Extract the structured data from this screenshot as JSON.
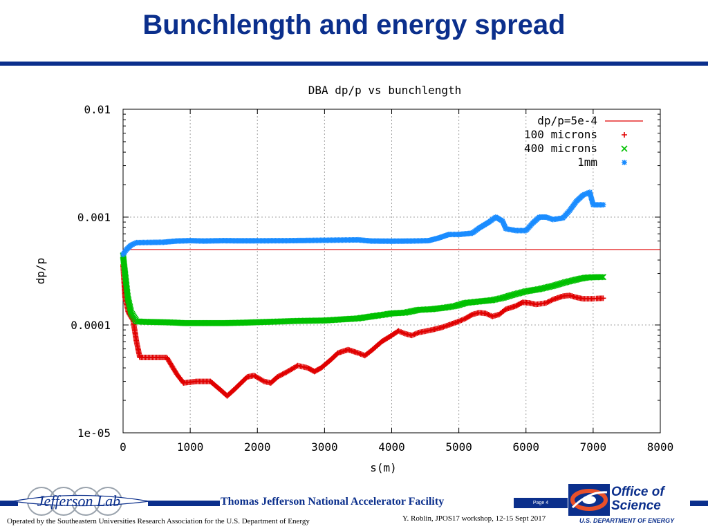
{
  "slide": {
    "title": "Bunchlength and energy spread"
  },
  "footer": {
    "lab_name": "Jefferson Lab",
    "facility": "Thomas Jefferson National Accelerator Facility",
    "page": "Page 4",
    "operated_by": "Operated by the Southeastern Universities Research Association for the U.S. Department of  Energy",
    "workshop": "Y. Roblin, JPOS17 workshop, 12-15 Sept 2017",
    "office_line1": "Office of",
    "office_line2": "Science",
    "doe": "U.S. DEPARTMENT OF ENERGY",
    "brand_color": "#0b2f8c"
  },
  "chart_data": {
    "type": "scatter",
    "title": "DBA dp/p vs bunchlength",
    "xlabel": "s(m)",
    "ylabel": "dp/p",
    "xlim": [
      0,
      8000
    ],
    "ylim": [
      1e-05,
      0.01
    ],
    "yscale": "log",
    "x_ticks": [
      0,
      1000,
      2000,
      3000,
      4000,
      5000,
      6000,
      7000,
      8000
    ],
    "x_tick_labels": [
      "0",
      "1000",
      "2000",
      "3000",
      "4000",
      "5000",
      "6000",
      "7000",
      "8000"
    ],
    "y_ticks": [
      0.01,
      0.001,
      0.0001,
      1e-05
    ],
    "y_tick_labels": [
      "0.01",
      "0.001",
      "0.0001",
      "1e-05"
    ],
    "grid": true,
    "legend_position": "top-right",
    "series": [
      {
        "name": "dp/p=5e-4",
        "style": "line",
        "color": "#e00000",
        "points": [
          [
            0,
            0.0005
          ],
          [
            8000,
            0.0005
          ]
        ]
      },
      {
        "name": "100 microns",
        "style": "plus",
        "color": "#e00000",
        "points": [
          [
            0,
            0.00036
          ],
          [
            30,
            0.00018
          ],
          [
            80,
            0.00013
          ],
          [
            150,
            0.00011
          ],
          [
            200,
            7e-05
          ],
          [
            250,
            5e-05
          ],
          [
            650,
            5e-05
          ],
          [
            800,
            3.5e-05
          ],
          [
            900,
            2.9e-05
          ],
          [
            1100,
            3e-05
          ],
          [
            1300,
            3e-05
          ],
          [
            1450,
            2.5e-05
          ],
          [
            1550,
            2.2e-05
          ],
          [
            1650,
            2.5e-05
          ],
          [
            1850,
            3.3e-05
          ],
          [
            1950,
            3.4e-05
          ],
          [
            2100,
            3e-05
          ],
          [
            2200,
            2.9e-05
          ],
          [
            2300,
            3.3e-05
          ],
          [
            2450,
            3.7e-05
          ],
          [
            2600,
            4.2e-05
          ],
          [
            2750,
            4e-05
          ],
          [
            2850,
            3.7e-05
          ],
          [
            2950,
            4e-05
          ],
          [
            3100,
            4.8e-05
          ],
          [
            3200,
            5.5e-05
          ],
          [
            3350,
            5.9e-05
          ],
          [
            3500,
            5.5e-05
          ],
          [
            3600,
            5.2e-05
          ],
          [
            3700,
            5.8e-05
          ],
          [
            3850,
            7e-05
          ],
          [
            4000,
            8e-05
          ],
          [
            4100,
            8.8e-05
          ],
          [
            4200,
            8.3e-05
          ],
          [
            4300,
            8e-05
          ],
          [
            4400,
            8.5e-05
          ],
          [
            4600,
            9e-05
          ],
          [
            4750,
            9.5e-05
          ],
          [
            4850,
            0.0001
          ],
          [
            5000,
            0.000108
          ],
          [
            5100,
            0.000115
          ],
          [
            5200,
            0.000125
          ],
          [
            5300,
            0.00013
          ],
          [
            5400,
            0.000128
          ],
          [
            5500,
            0.00012
          ],
          [
            5600,
            0.000125
          ],
          [
            5700,
            0.00014
          ],
          [
            5850,
            0.00015
          ],
          [
            5950,
            0.000162
          ],
          [
            6050,
            0.00016
          ],
          [
            6150,
            0.000155
          ],
          [
            6300,
            0.00016
          ],
          [
            6400,
            0.000172
          ],
          [
            6550,
            0.000185
          ],
          [
            6650,
            0.000188
          ],
          [
            6750,
            0.00018
          ],
          [
            6850,
            0.000175
          ],
          [
            7000,
            0.000175
          ],
          [
            7050,
            0.000176
          ],
          [
            7150,
            0.000177
          ]
        ]
      },
      {
        "name": "400 microns",
        "style": "cross",
        "color": "#00c000",
        "points": [
          [
            0,
            0.00044
          ],
          [
            30,
            0.0003
          ],
          [
            70,
            0.00018
          ],
          [
            120,
            0.00013
          ],
          [
            200,
            0.000108
          ],
          [
            300,
            0.000107
          ],
          [
            600,
            0.000106
          ],
          [
            800,
            0.000105
          ],
          [
            900,
            0.000104
          ],
          [
            1200,
            0.000104
          ],
          [
            1500,
            0.000104
          ],
          [
            1800,
            0.000105
          ],
          [
            2000,
            0.000106
          ],
          [
            2200,
            0.000107
          ],
          [
            2600,
            0.000109
          ],
          [
            3000,
            0.00011
          ],
          [
            3200,
            0.000112
          ],
          [
            3500,
            0.000115
          ],
          [
            3700,
            0.00012
          ],
          [
            3900,
            0.000125
          ],
          [
            4000,
            0.000128
          ],
          [
            4200,
            0.00013
          ],
          [
            4400,
            0.000138
          ],
          [
            4600,
            0.00014
          ],
          [
            4800,
            0.000145
          ],
          [
            4950,
            0.00015
          ],
          [
            5100,
            0.00016
          ],
          [
            5300,
            0.000165
          ],
          [
            5500,
            0.00017
          ],
          [
            5650,
            0.000178
          ],
          [
            5800,
            0.00019
          ],
          [
            6000,
            0.000205
          ],
          [
            6200,
            0.000215
          ],
          [
            6400,
            0.00023
          ],
          [
            6600,
            0.00025
          ],
          [
            6800,
            0.000268
          ],
          [
            6900,
            0.000275
          ],
          [
            7000,
            0.000277
          ],
          [
            7150,
            0.000278
          ]
        ]
      },
      {
        "name": "1mm",
        "style": "star",
        "color": "#1a8cff",
        "points": [
          [
            0,
            0.00045
          ],
          [
            50,
            0.0005
          ],
          [
            120,
            0.00055
          ],
          [
            200,
            0.00058
          ],
          [
            600,
            0.000585
          ],
          [
            800,
            0.0006
          ],
          [
            1000,
            0.000605
          ],
          [
            1200,
            0.0006
          ],
          [
            1500,
            0.000605
          ],
          [
            1700,
            0.000603
          ],
          [
            2000,
            0.000603
          ],
          [
            2500,
            0.000605
          ],
          [
            3000,
            0.00061
          ],
          [
            3500,
            0.000615
          ],
          [
            3700,
            0.0006
          ],
          [
            4000,
            0.000598
          ],
          [
            4300,
            0.0006
          ],
          [
            4550,
            0.000605
          ],
          [
            4700,
            0.00064
          ],
          [
            4850,
            0.00069
          ],
          [
            5000,
            0.00069
          ],
          [
            5200,
            0.00071
          ],
          [
            5300,
            0.00079
          ],
          [
            5450,
            0.0009
          ],
          [
            5550,
            0.001
          ],
          [
            5650,
            0.00092
          ],
          [
            5700,
            0.00078
          ],
          [
            5850,
            0.00075
          ],
          [
            6000,
            0.00075
          ],
          [
            6100,
            0.00088
          ],
          [
            6200,
            0.001
          ],
          [
            6300,
            0.001
          ],
          [
            6400,
            0.00095
          ],
          [
            6550,
            0.00098
          ],
          [
            6650,
            0.00115
          ],
          [
            6750,
            0.0014
          ],
          [
            6850,
            0.0016
          ],
          [
            6950,
            0.0017
          ],
          [
            7000,
            0.0013
          ],
          [
            7150,
            0.0013
          ]
        ]
      }
    ]
  }
}
